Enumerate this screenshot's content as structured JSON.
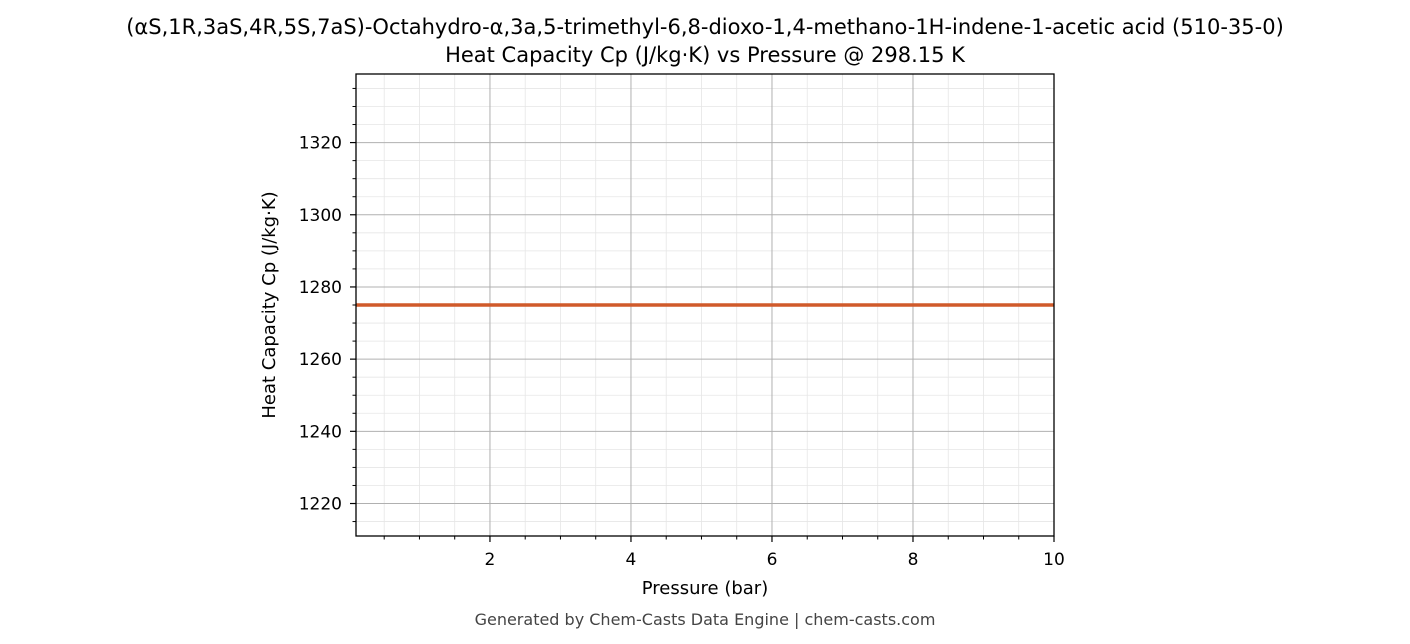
{
  "chart_data": {
    "type": "line",
    "title": "(αS,1R,3aS,4R,5S,7aS)-Octahydro-α,3a,5-trimethyl-6,8-dioxo-1,4-methano-1H-indene-1-acetic acid (510-35-0)",
    "subtitle": "Heat Capacity Cp (J/kg·K) vs Pressure @ 298.15 K",
    "xlabel": "Pressure (bar)",
    "ylabel": "Heat Capacity Cp (J/kg·K)",
    "xlim": [
      0.1,
      10
    ],
    "ylim": [
      1211,
      1339
    ],
    "x_ticks": [
      2,
      4,
      6,
      8,
      10
    ],
    "y_ticks": [
      1220,
      1240,
      1260,
      1280,
      1300,
      1320
    ],
    "grid": true,
    "series": [
      {
        "color": "#d05a2a",
        "x": [
          0.1,
          10
        ],
        "y": [
          1275,
          1275
        ]
      }
    ],
    "footer": "Generated by Chem-Casts Data Engine | chem-casts.com"
  }
}
